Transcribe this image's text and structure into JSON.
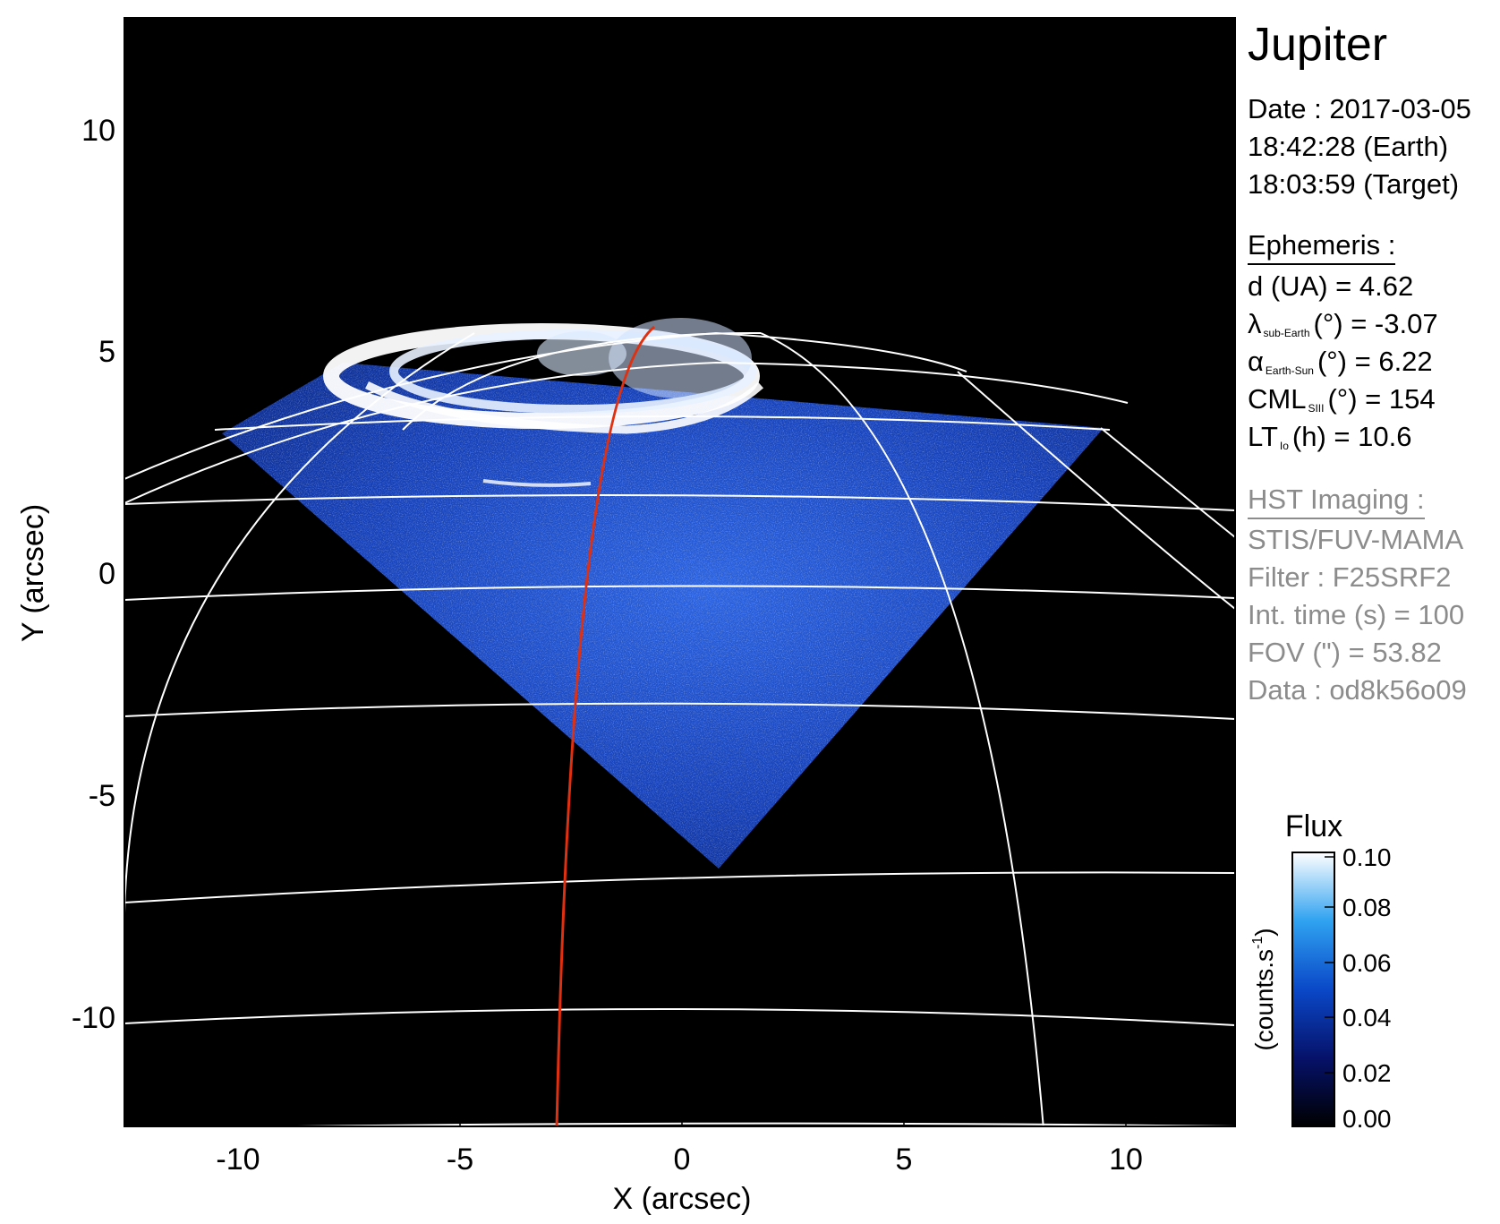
{
  "planet": "Jupiter",
  "obs": {
    "date": "Date : 2017-03-05",
    "earth_time": "18:42:28 (Earth)",
    "target_time": "18:03:59 (Target)"
  },
  "ephemeris": {
    "heading": "Ephemeris :",
    "d": "d (UA)    = 4.62",
    "lat_sym": "λ",
    "lat_sub": "sub-Earth",
    "lat_val": "(°) = -3.07",
    "alpha_sym": "α",
    "alpha_sub": "Earth-Sun",
    "alpha_val": "(°) = 6.22",
    "cml_sym": "CML",
    "cml_sub": "SIII",
    "cml_val": "(°) = 154",
    "lt_sym": "LT",
    "lt_sub": "Io",
    "lt_val": "(h) = 10.6"
  },
  "hst": {
    "heading": "HST Imaging :",
    "instrument": "STIS/FUV-MAMA",
    "filter": "Filter : F25SRF2",
    "int_time": "Int. time (s) = 100",
    "fov": "FOV (\") = 53.82",
    "data": "Data : od8k56o09"
  },
  "colorbar": {
    "title": "Flux",
    "unit": "(counts.s",
    "unit_exp": "-1",
    "unit_close": ")",
    "ticks": [
      "0.10",
      "0.08",
      "0.06",
      "0.04",
      "0.02",
      "0.00"
    ],
    "range": [
      0,
      0.1
    ]
  },
  "axes": {
    "xlabel": "X (arcsec)",
    "ylabel": "Y (arcsec)",
    "xticks": [
      "-10",
      "-5",
      "0",
      "5",
      "10"
    ],
    "yticks": [
      "10",
      "5",
      "0",
      "-5",
      "-10"
    ],
    "xlim": [
      -12.5,
      12.5
    ],
    "ylim": [
      -12.5,
      12.5
    ]
  },
  "colors": {
    "background": "#000000",
    "grid": "#ffffff",
    "track": "#e03010",
    "aurora": "#ffffff",
    "disk_emission": "#1a4fd0"
  }
}
